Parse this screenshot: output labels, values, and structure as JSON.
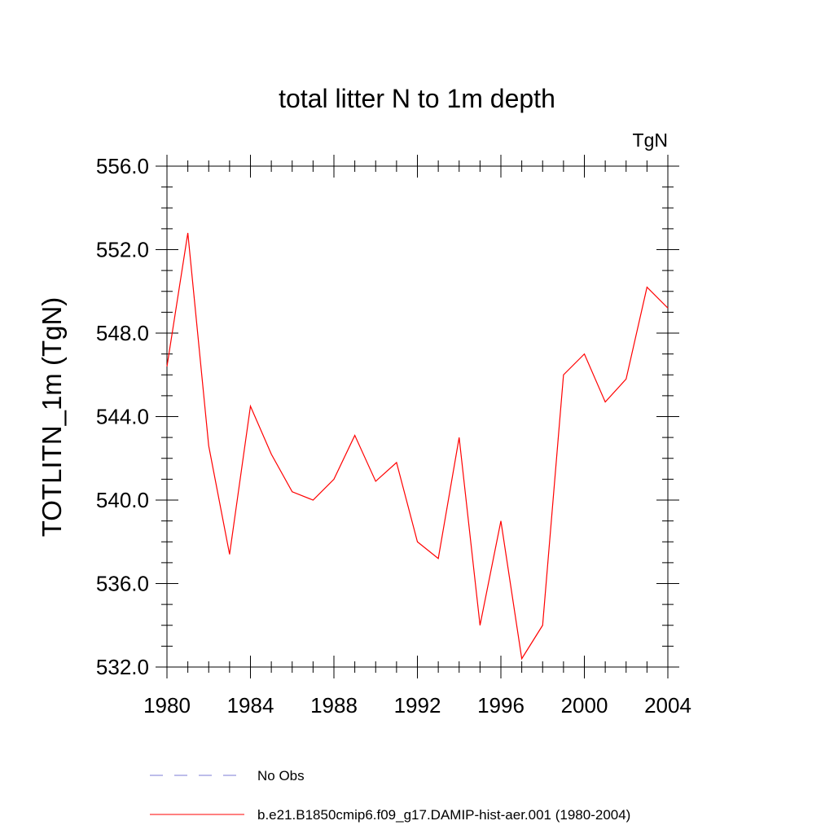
{
  "chart_data": {
    "type": "line",
    "title": "total litter N to 1m depth",
    "units_label": "TgN",
    "ylabel": "TOTLITN_1m  (TgN)",
    "xlabel": "",
    "xlim": [
      1980,
      2004
    ],
    "ylim": [
      532.0,
      556.0
    ],
    "x_major_ticks": [
      1980,
      1984,
      1988,
      1992,
      1996,
      2000,
      2004
    ],
    "x_tick_labels": [
      "1980",
      "1984",
      "1988",
      "1992",
      "1996",
      "2000",
      "2004"
    ],
    "y_major_ticks": [
      532.0,
      536.0,
      540.0,
      544.0,
      548.0,
      552.0,
      556.0
    ],
    "y_tick_labels": [
      "532.0",
      "536.0",
      "540.0",
      "544.0",
      "548.0",
      "552.0",
      "556.0"
    ],
    "grid": false,
    "legend_position": "bottom",
    "series": [
      {
        "name": "b.e21.B1850cmip6.f09_g17.DAMIP-hist-aer.001 (1980-2004)",
        "color": "#ff0000",
        "style": "solid",
        "x": [
          1980,
          1981,
          1982,
          1983,
          1984,
          1985,
          1986,
          1987,
          1988,
          1989,
          1990,
          1991,
          1992,
          1993,
          1994,
          1995,
          1996,
          1997,
          1998,
          1999,
          2000,
          2001,
          2002,
          2003,
          2004
        ],
        "y": [
          546.4,
          552.8,
          542.6,
          537.4,
          544.5,
          542.2,
          540.4,
          540.0,
          541.0,
          543.1,
          540.9,
          541.8,
          538.0,
          537.2,
          543.0,
          534.0,
          539.0,
          532.4,
          534.0,
          546.0,
          547.0,
          544.7,
          545.8,
          550.2,
          549.2
        ]
      }
    ],
    "legend": [
      {
        "label": "No Obs",
        "color": "#7b7bd6",
        "style": "dashed"
      },
      {
        "label": "b.e21.B1850cmip6.f09_g17.DAMIP-hist-aer.001 (1980-2004)",
        "color": "#ff0000",
        "style": "solid"
      }
    ]
  }
}
